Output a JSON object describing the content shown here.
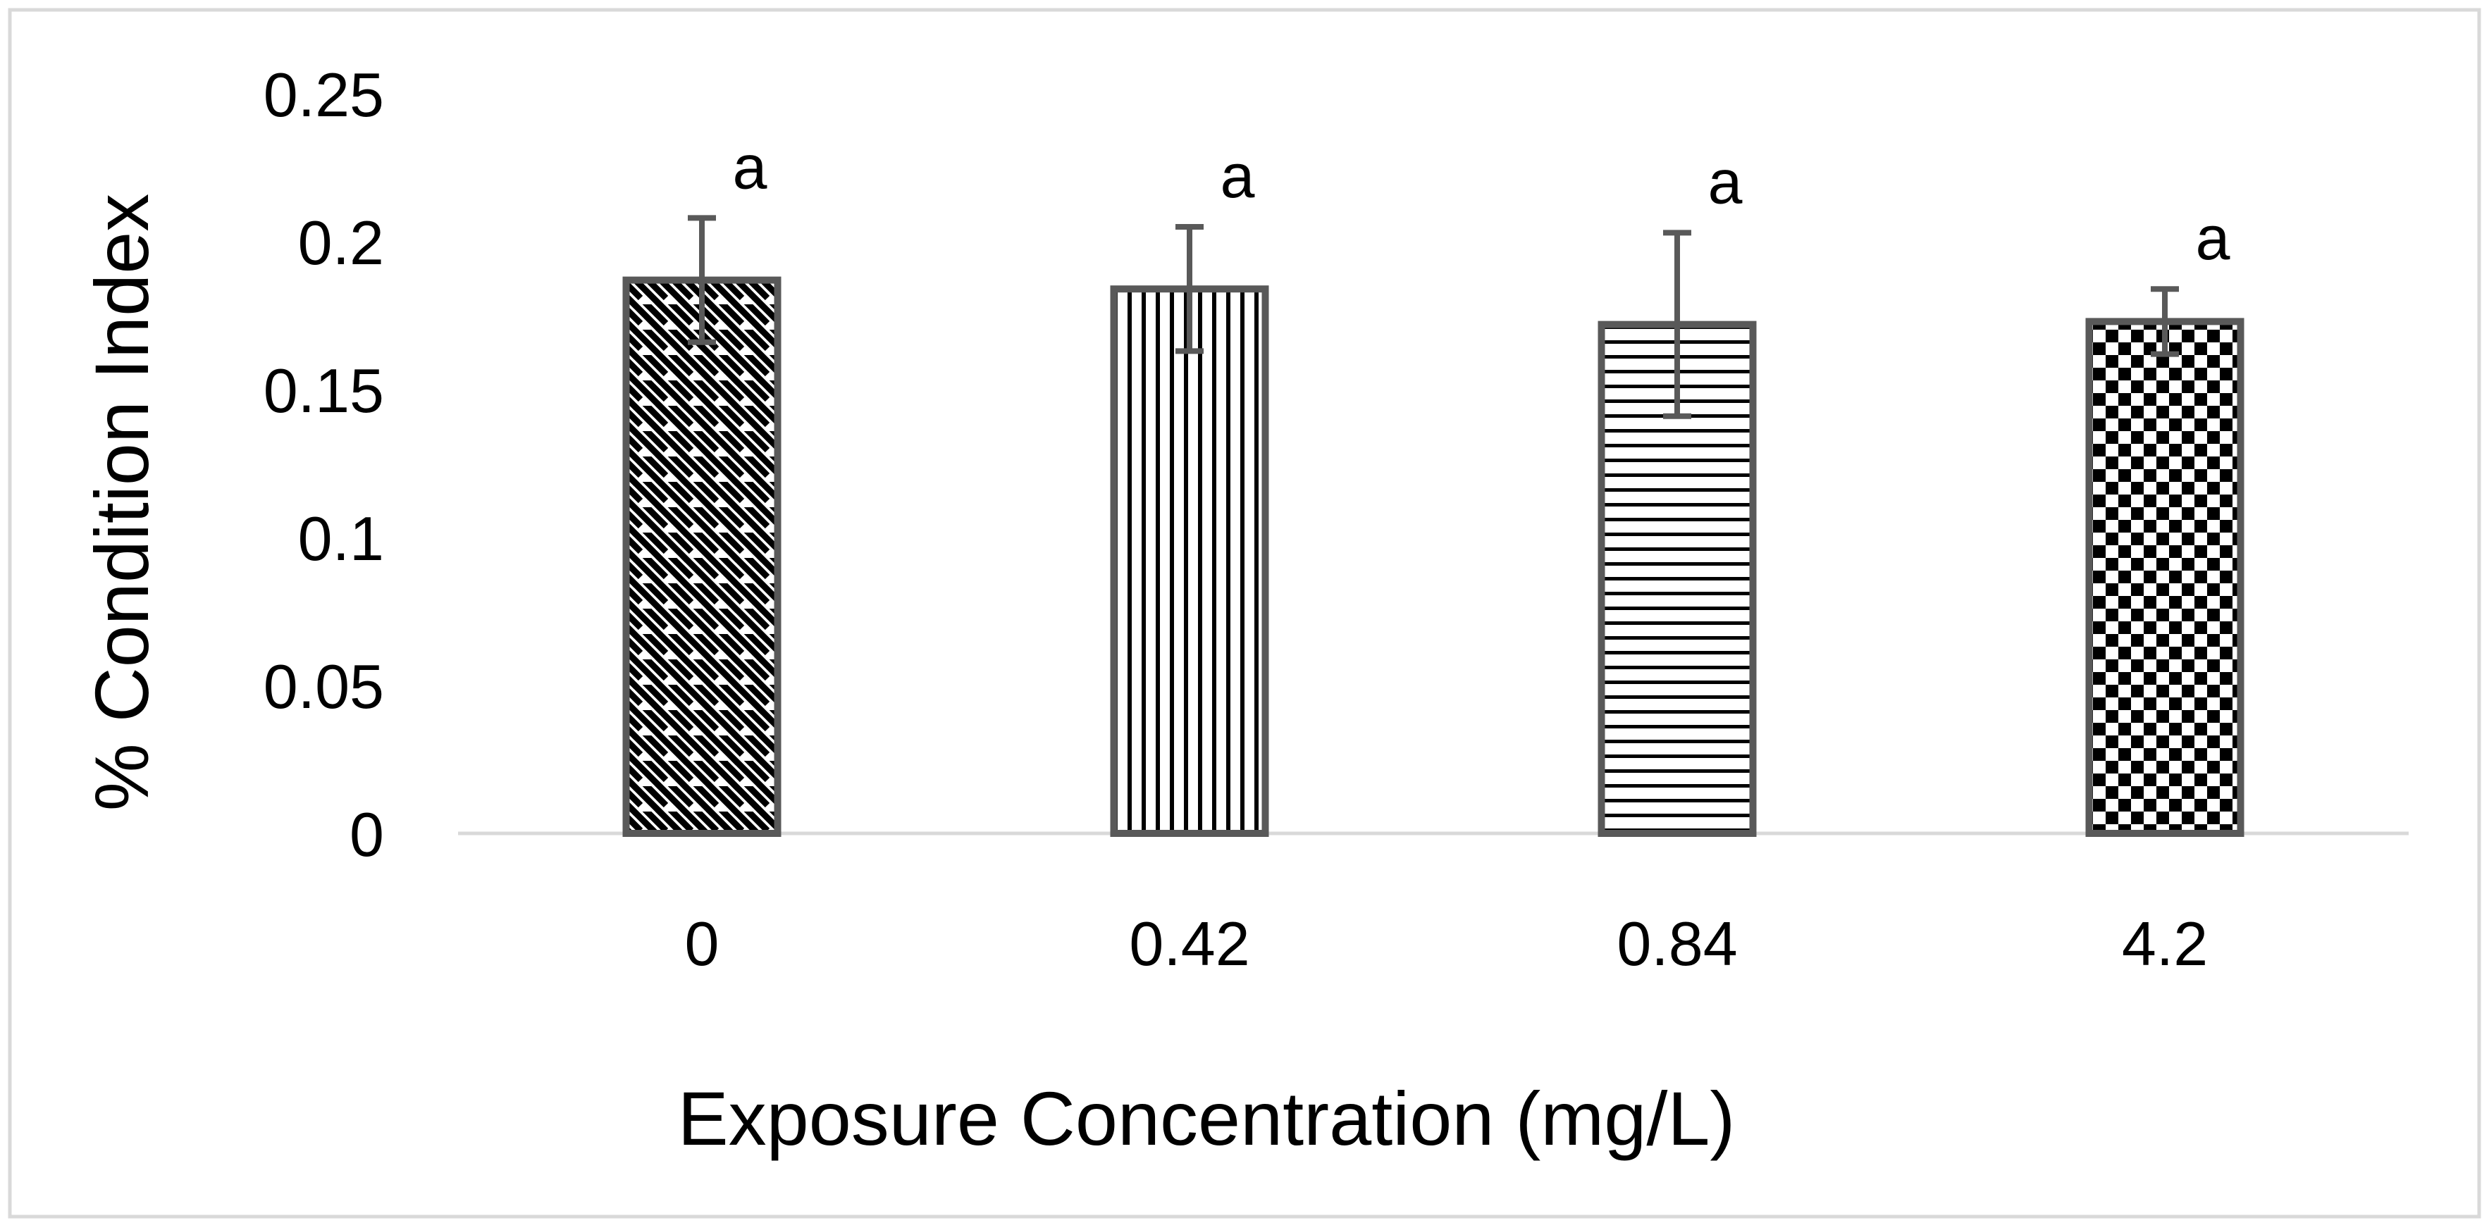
{
  "chart_data": {
    "type": "bar",
    "title": "",
    "xlabel": "Exposure Concentration (mg/L)",
    "ylabel": "% Condition Index",
    "categories": [
      "0",
      "0.42",
      "0.84",
      "4.2"
    ],
    "values": [
      0.187,
      0.184,
      0.172,
      0.173
    ],
    "error_upper": [
      0.208,
      0.205,
      0.203,
      0.184
    ],
    "error_lower": [
      0.166,
      0.163,
      0.141,
      0.162
    ],
    "significance_labels": [
      "a",
      "a",
      "a",
      "a"
    ],
    "patterns": [
      "diagonal-stripes",
      "vertical-stripes",
      "horizontal-stripes",
      "checkerboard"
    ],
    "ylim": [
      0,
      0.25
    ],
    "yticks": [
      "0",
      "0.05",
      "0.1",
      "0.15",
      "0.2",
      "0.25"
    ],
    "grid": false,
    "legend": "none",
    "colors": {
      "bar_outline": "#595959",
      "pattern_ink": "#000000",
      "error_bar": "#595959",
      "axis_line": "#d9d9d9",
      "frame": "#d9d9d9"
    }
  }
}
